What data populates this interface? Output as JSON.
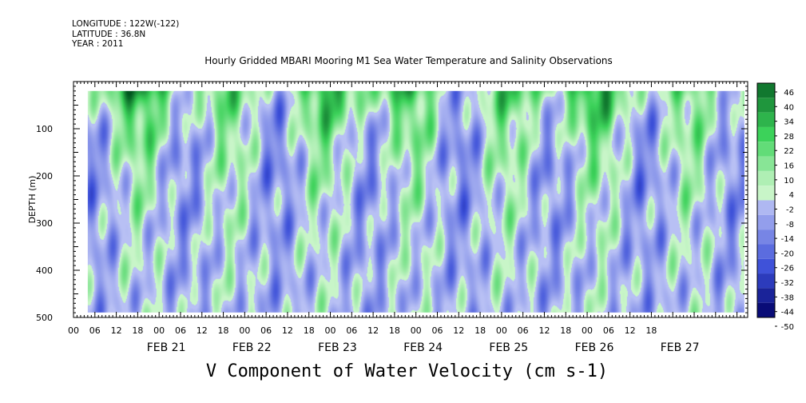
{
  "header": {
    "longitude": "LONGITUDE : 122W(-122)",
    "latitude": "LATITUDE : 36.8N",
    "year": "YEAR : 2011"
  },
  "chart_data": {
    "type": "heatmap",
    "title": "Hourly Gridded MBARI Mooring M1 Sea Water Temperature and Salinity Observations",
    "xlabel": "V Component of Water Velocity (cm s-1)",
    "ylabel": "DEPTH (m)",
    "ylim": [
      500,
      0
    ],
    "y_ticks": [
      100,
      200,
      300,
      400,
      500
    ],
    "hour_ticks": [
      "00",
      "06",
      "12",
      "18",
      "00",
      "06",
      "12",
      "18",
      "00",
      "06",
      "12",
      "18",
      "00",
      "06",
      "12",
      "18",
      "00",
      "06",
      "12",
      "18",
      "00",
      "06",
      "12",
      "18",
      "00",
      "06",
      "12",
      "18"
    ],
    "day_labels": [
      "FEB 21",
      "FEB 22",
      "FEB 23",
      "FEB 24",
      "FEB 25",
      "FEB 26",
      "FEB 27"
    ],
    "x_range": [
      "2011-02-20T00:00",
      "2011-02-27T21:00"
    ],
    "data_extent": {
      "start": "2011-02-20T04:00",
      "end": "2011-02-27T20:00",
      "depth_top": 20,
      "depth_bottom": 490
    },
    "colorbar": {
      "levels": [
        -50,
        -44,
        -38,
        -32,
        -26,
        -20,
        -14,
        -8,
        -2,
        4,
        10,
        16,
        22,
        28,
        34,
        40,
        46
      ],
      "labels": [
        "46",
        "40",
        "34",
        "28",
        "22",
        "16",
        "10",
        "4",
        "-2",
        "-8",
        "-14",
        "-20",
        "-26",
        "-32",
        "-38",
        "-44",
        "-50"
      ],
      "colors": {
        "deep_negative": "#000066",
        "negative": "#3a4ed8",
        "near_zero_negative": "#b8c0f4",
        "near_zero_positive": "#c8f5c8",
        "positive": "#3cd25a",
        "deep_positive": "#00551e"
      }
    },
    "grid": false
  }
}
